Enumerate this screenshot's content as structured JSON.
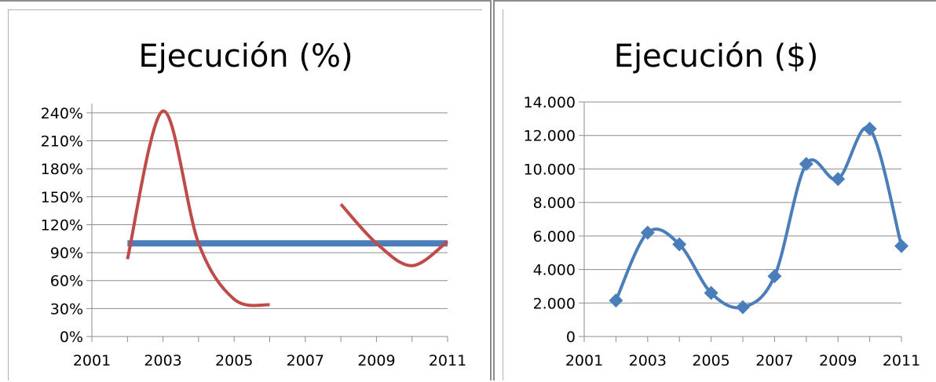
{
  "chart_data": [
    {
      "type": "line",
      "title": "Ejecución (%)",
      "xlabel": "",
      "ylabel": "",
      "x_ticks": [
        "2001",
        "2003",
        "2005",
        "2007",
        "2009",
        "2011"
      ],
      "y_ticks": [
        "0%",
        "30%",
        "60%",
        "90%",
        "120%",
        "150%",
        "180%",
        "210%",
        "240%"
      ],
      "xlim": [
        2001,
        2011
      ],
      "ylim": [
        0,
        250
      ],
      "grid": true,
      "series": [
        {
          "color": "#4a7ebb",
          "values": [
            [
              2002,
              100
            ],
            [
              2011,
              100
            ]
          ]
        },
        {
          "color": "#be4b48",
          "values": [
            [
              2002,
              83
            ],
            [
              2003,
              242
            ],
            [
              2004,
              100
            ],
            [
              2005,
              40
            ],
            [
              2006,
              34
            ]
          ]
        },
        {
          "color": "#be4b48",
          "values": [
            [
              2008,
              142
            ],
            [
              2009,
              100
            ],
            [
              2010,
              76
            ],
            [
              2011,
              102
            ]
          ]
        }
      ]
    },
    {
      "type": "line",
      "title": "Ejecución ($)",
      "xlabel": "",
      "ylabel": "",
      "x_ticks": [
        "2001",
        "2003",
        "2005",
        "2007",
        "2009",
        "2011"
      ],
      "y_ticks": [
        "0",
        "2.000",
        "4.000",
        "6.000",
        "8.000",
        "10.000",
        "12.000",
        "14.000"
      ],
      "xlim": [
        2001,
        2011
      ],
      "ylim": [
        0,
        14000
      ],
      "grid": true,
      "series": [
        {
          "color": "#4a7ebb",
          "marker": "diamond",
          "values": [
            [
              2002,
              2150
            ],
            [
              2003,
              6200
            ],
            [
              2004,
              5500
            ],
            [
              2005,
              2600
            ],
            [
              2006,
              1750
            ],
            [
              2007,
              3600
            ],
            [
              2008,
              10300
            ],
            [
              2009,
              9400
            ],
            [
              2010,
              12400
            ],
            [
              2011,
              5400
            ]
          ]
        }
      ]
    }
  ]
}
